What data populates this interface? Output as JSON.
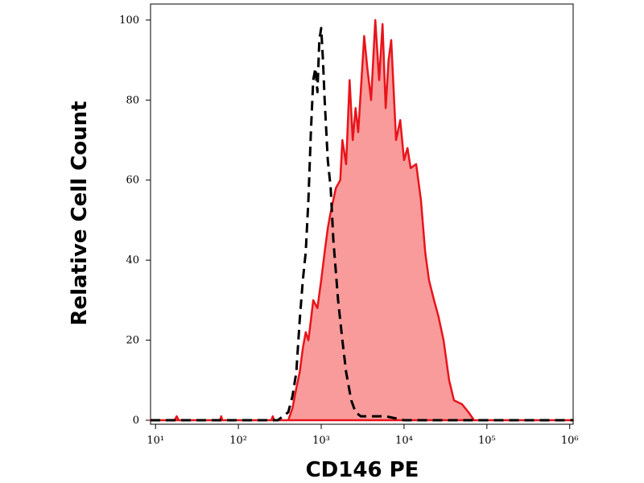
{
  "chart_data": {
    "type": "histogram-overlay",
    "x_label": "CD146 PE",
    "y_label": "Relative Cell Count",
    "xscale": "log",
    "xlim": [
      8.7,
      1100000
    ],
    "ylim": [
      -1,
      104
    ],
    "xticks": [
      {
        "value": 10,
        "label": "10¹"
      },
      {
        "value": 100,
        "label": "10²"
      },
      {
        "value": 1000,
        "label": "10³"
      },
      {
        "value": 10000,
        "label": "10⁴"
      },
      {
        "value": 100000,
        "label": "10⁵"
      },
      {
        "value": 1000000,
        "label": "10⁶"
      }
    ],
    "yticks": [
      0,
      20,
      40,
      60,
      80,
      100
    ],
    "series": [
      {
        "color": "#e8141b",
        "fill": "#f99b9b",
        "dash": false,
        "x": [
          8.7,
          17,
          18,
          19,
          60,
          62,
          64,
          250,
          260,
          270,
          400,
          450,
          500,
          550,
          600,
          650,
          700,
          750,
          800,
          900,
          1000,
          1100,
          1200,
          1300,
          1500,
          1700,
          1800,
          2000,
          2200,
          2400,
          2600,
          2800,
          3000,
          3300,
          3600,
          4000,
          4500,
          5000,
          5500,
          6000,
          6500,
          7000,
          8000,
          9000,
          10000,
          11000,
          12000,
          14000,
          16000,
          18000,
          20000,
          23000,
          26000,
          30000,
          35000,
          40000,
          50000,
          60000,
          70000,
          1100000
        ],
        "values": [
          0,
          0,
          1,
          0,
          0,
          1,
          0,
          0,
          1,
          0,
          0,
          3,
          8,
          12,
          18,
          22,
          20,
          25,
          30,
          28,
          35,
          42,
          48,
          52,
          58,
          60,
          70,
          64,
          85,
          70,
          78,
          72,
          82,
          96,
          88,
          80,
          100,
          85,
          99,
          78,
          90,
          95,
          70,
          75,
          65,
          68,
          63,
          64,
          55,
          42,
          35,
          30,
          26,
          20,
          10,
          5,
          4,
          2,
          0,
          0
        ]
      },
      {
        "color": "#000000",
        "fill": "none",
        "dash": true,
        "x": [
          8.7,
          300,
          400,
          450,
          500,
          550,
          600,
          650,
          700,
          750,
          800,
          850,
          900,
          950,
          1000,
          1050,
          1100,
          1200,
          1300,
          1400,
          1600,
          1800,
          2000,
          2300,
          2600,
          3000,
          4000,
          6000,
          10000,
          1100000
        ],
        "values": [
          0,
          0,
          2,
          6,
          12,
          25,
          35,
          42,
          55,
          72,
          85,
          88,
          82,
          95,
          98,
          90,
          80,
          65,
          58,
          45,
          30,
          20,
          12,
          5,
          2,
          1,
          1,
          1,
          0,
          0
        ]
      }
    ]
  }
}
